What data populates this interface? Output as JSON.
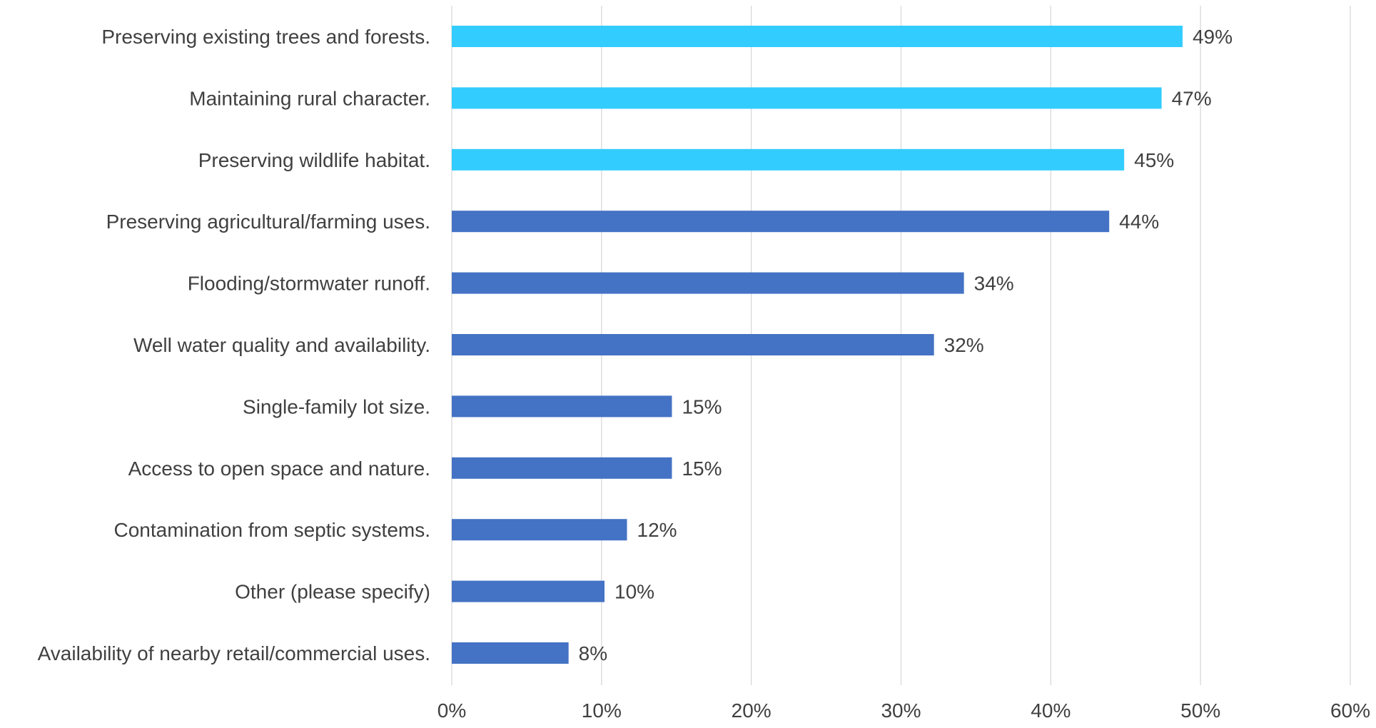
{
  "chart_data": {
    "type": "bar",
    "orientation": "horizontal",
    "title": "",
    "xlabel": "",
    "ylabel": "",
    "xlim": [
      0,
      60
    ],
    "x_ticks": [
      0,
      10,
      20,
      30,
      40,
      50,
      60
    ],
    "x_tick_labels": [
      "0%",
      "10%",
      "20%",
      "30%",
      "40%",
      "50%",
      "60%"
    ],
    "grid": "vertical",
    "legend": "none",
    "categories": [
      "Preserving existing trees and forests.",
      "Maintaining rural character.",
      "Preserving wildlife habitat.",
      "Preserving agricultural/farming uses.",
      "Flooding/stormwater runoff.",
      "Well water quality and availability.",
      "Single-family lot size.",
      "Access to open space and nature.",
      "Contamination from septic systems.",
      "Other (please specify)",
      "Availability of nearby retail/commercial uses."
    ],
    "values": [
      48.8,
      47.4,
      44.9,
      43.9,
      34.2,
      32.2,
      14.7,
      14.7,
      11.7,
      10.2,
      7.8
    ],
    "data_labels": [
      "49%",
      "47%",
      "45%",
      "44%",
      "34%",
      "32%",
      "15%",
      "15%",
      "12%",
      "10%",
      "8%"
    ],
    "bar_colors": [
      "#33ccff",
      "#33ccff",
      "#33ccff",
      "#4472c4",
      "#4472c4",
      "#4472c4",
      "#4472c4",
      "#4472c4",
      "#4472c4",
      "#4472c4",
      "#4472c4"
    ],
    "colors": {
      "highlight": "#33ccff",
      "default": "#4472c4",
      "grid": "#d9d9d9",
      "text": "#404040"
    }
  }
}
